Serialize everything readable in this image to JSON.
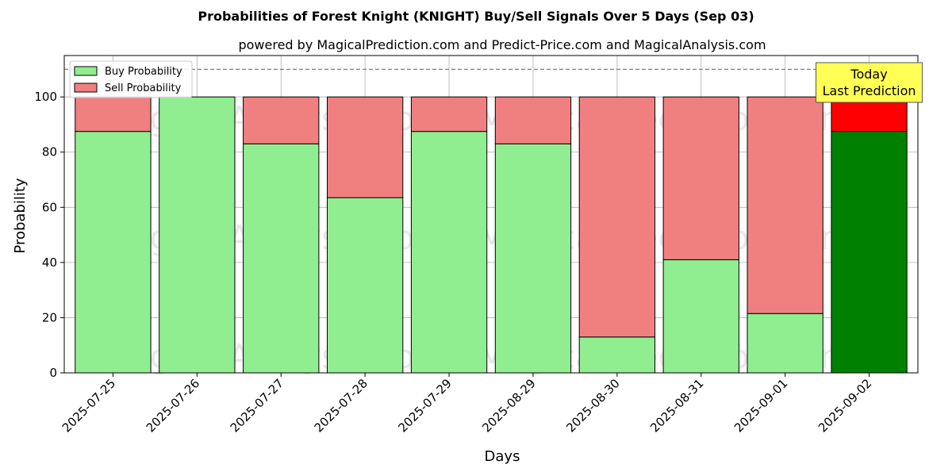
{
  "chart_data": {
    "type": "bar",
    "stacked": true,
    "title": "Probabilities of Forest Knight (KNIGHT) Buy/Sell Signals Over 5 Days (Sep 03)",
    "subtitle": "powered by MagicalPrediction.com and Predict-Price.com and MagicalAnalysis.com",
    "xlabel": "Days",
    "ylabel": "Probability",
    "ylim": [
      0,
      115
    ],
    "yticks": [
      0,
      20,
      40,
      60,
      80,
      100
    ],
    "grid": true,
    "legend_position": "top-left",
    "reference_line": 110,
    "categories": [
      "2025-07-25",
      "2025-07-26",
      "2025-07-27",
      "2025-07-28",
      "2025-07-29",
      "2025-08-29",
      "2025-08-30",
      "2025-08-31",
      "2025-09-01",
      "2025-09-02"
    ],
    "series": [
      {
        "name": "Buy Probability",
        "values": [
          87.5,
          100,
          83,
          63.5,
          87.5,
          83,
          13,
          41,
          21.5,
          87.5
        ],
        "color": "#90ee90",
        "highlight_color": "#008000"
      },
      {
        "name": "Sell Probability",
        "values": [
          12.5,
          0,
          17,
          36.5,
          12.5,
          17,
          87,
          59,
          78.5,
          12.5
        ],
        "color": "#f08080",
        "highlight_color": "#ff0000"
      }
    ],
    "highlight_index": 9,
    "annotation": {
      "lines": [
        "Today",
        "Last Prediction"
      ],
      "background": "#ffff55"
    },
    "watermarks": [
      "MagicalAnalysis.com",
      "MagicalPrediction.com"
    ]
  }
}
